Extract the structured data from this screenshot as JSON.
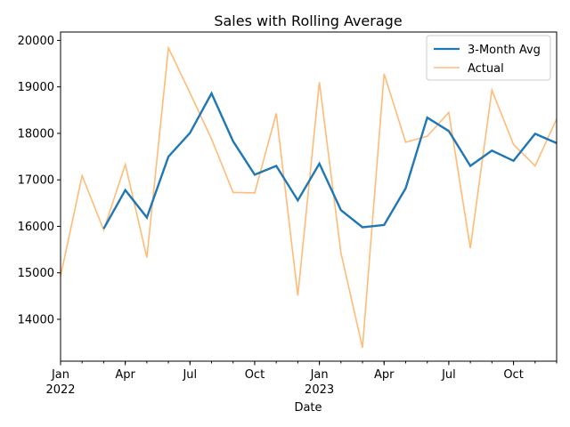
{
  "chart_data": {
    "type": "line",
    "title": "Sales with Rolling Average",
    "xlabel": "Date",
    "ylabel": "",
    "x": [
      "2022-01",
      "2022-02",
      "2022-03",
      "2022-04",
      "2022-05",
      "2022-06",
      "2022-07",
      "2022-08",
      "2022-09",
      "2022-10",
      "2022-11",
      "2022-12",
      "2023-01",
      "2023-02",
      "2023-03",
      "2023-04",
      "2023-05",
      "2023-06",
      "2023-07",
      "2023-08",
      "2023-09",
      "2023-10",
      "2023-11",
      "2023-12"
    ],
    "series": [
      {
        "name": "3-Month Avg",
        "color": "#1f77b4",
        "values": [
          null,
          null,
          15950,
          16780,
          16190,
          17500,
          18010,
          18860,
          17830,
          17110,
          17300,
          16560,
          17350,
          16350,
          15980,
          16030,
          16820,
          18340,
          18050,
          17300,
          17630,
          17410,
          17990,
          17790
        ]
      },
      {
        "name": "Actual",
        "color": "#ffbb78",
        "values": [
          14930,
          17090,
          15920,
          17330,
          15330,
          19840,
          18870,
          17880,
          16730,
          16720,
          18430,
          14510,
          19100,
          15430,
          13390,
          19280,
          17810,
          17940,
          18450,
          15530,
          18930,
          17760,
          17300,
          18310
        ]
      }
    ],
    "ylim": [
      13100,
      20180
    ],
    "yticks": [
      14000,
      15000,
      16000,
      17000,
      18000,
      19000,
      20000
    ],
    "xticks": [
      {
        "date": "2022-01",
        "label": "Jan",
        "sublabel": "2022"
      },
      {
        "date": "2022-04",
        "label": "Apr",
        "sublabel": ""
      },
      {
        "date": "2022-07",
        "label": "Jul",
        "sublabel": ""
      },
      {
        "date": "2022-10",
        "label": "Oct",
        "sublabel": ""
      },
      {
        "date": "2023-01",
        "label": "Jan",
        "sublabel": "2023"
      },
      {
        "date": "2023-04",
        "label": "Apr",
        "sublabel": ""
      },
      {
        "date": "2023-07",
        "label": "Jul",
        "sublabel": ""
      },
      {
        "date": "2023-10",
        "label": "Oct",
        "sublabel": ""
      }
    ],
    "grid": false,
    "legend_placement": "top-right"
  }
}
